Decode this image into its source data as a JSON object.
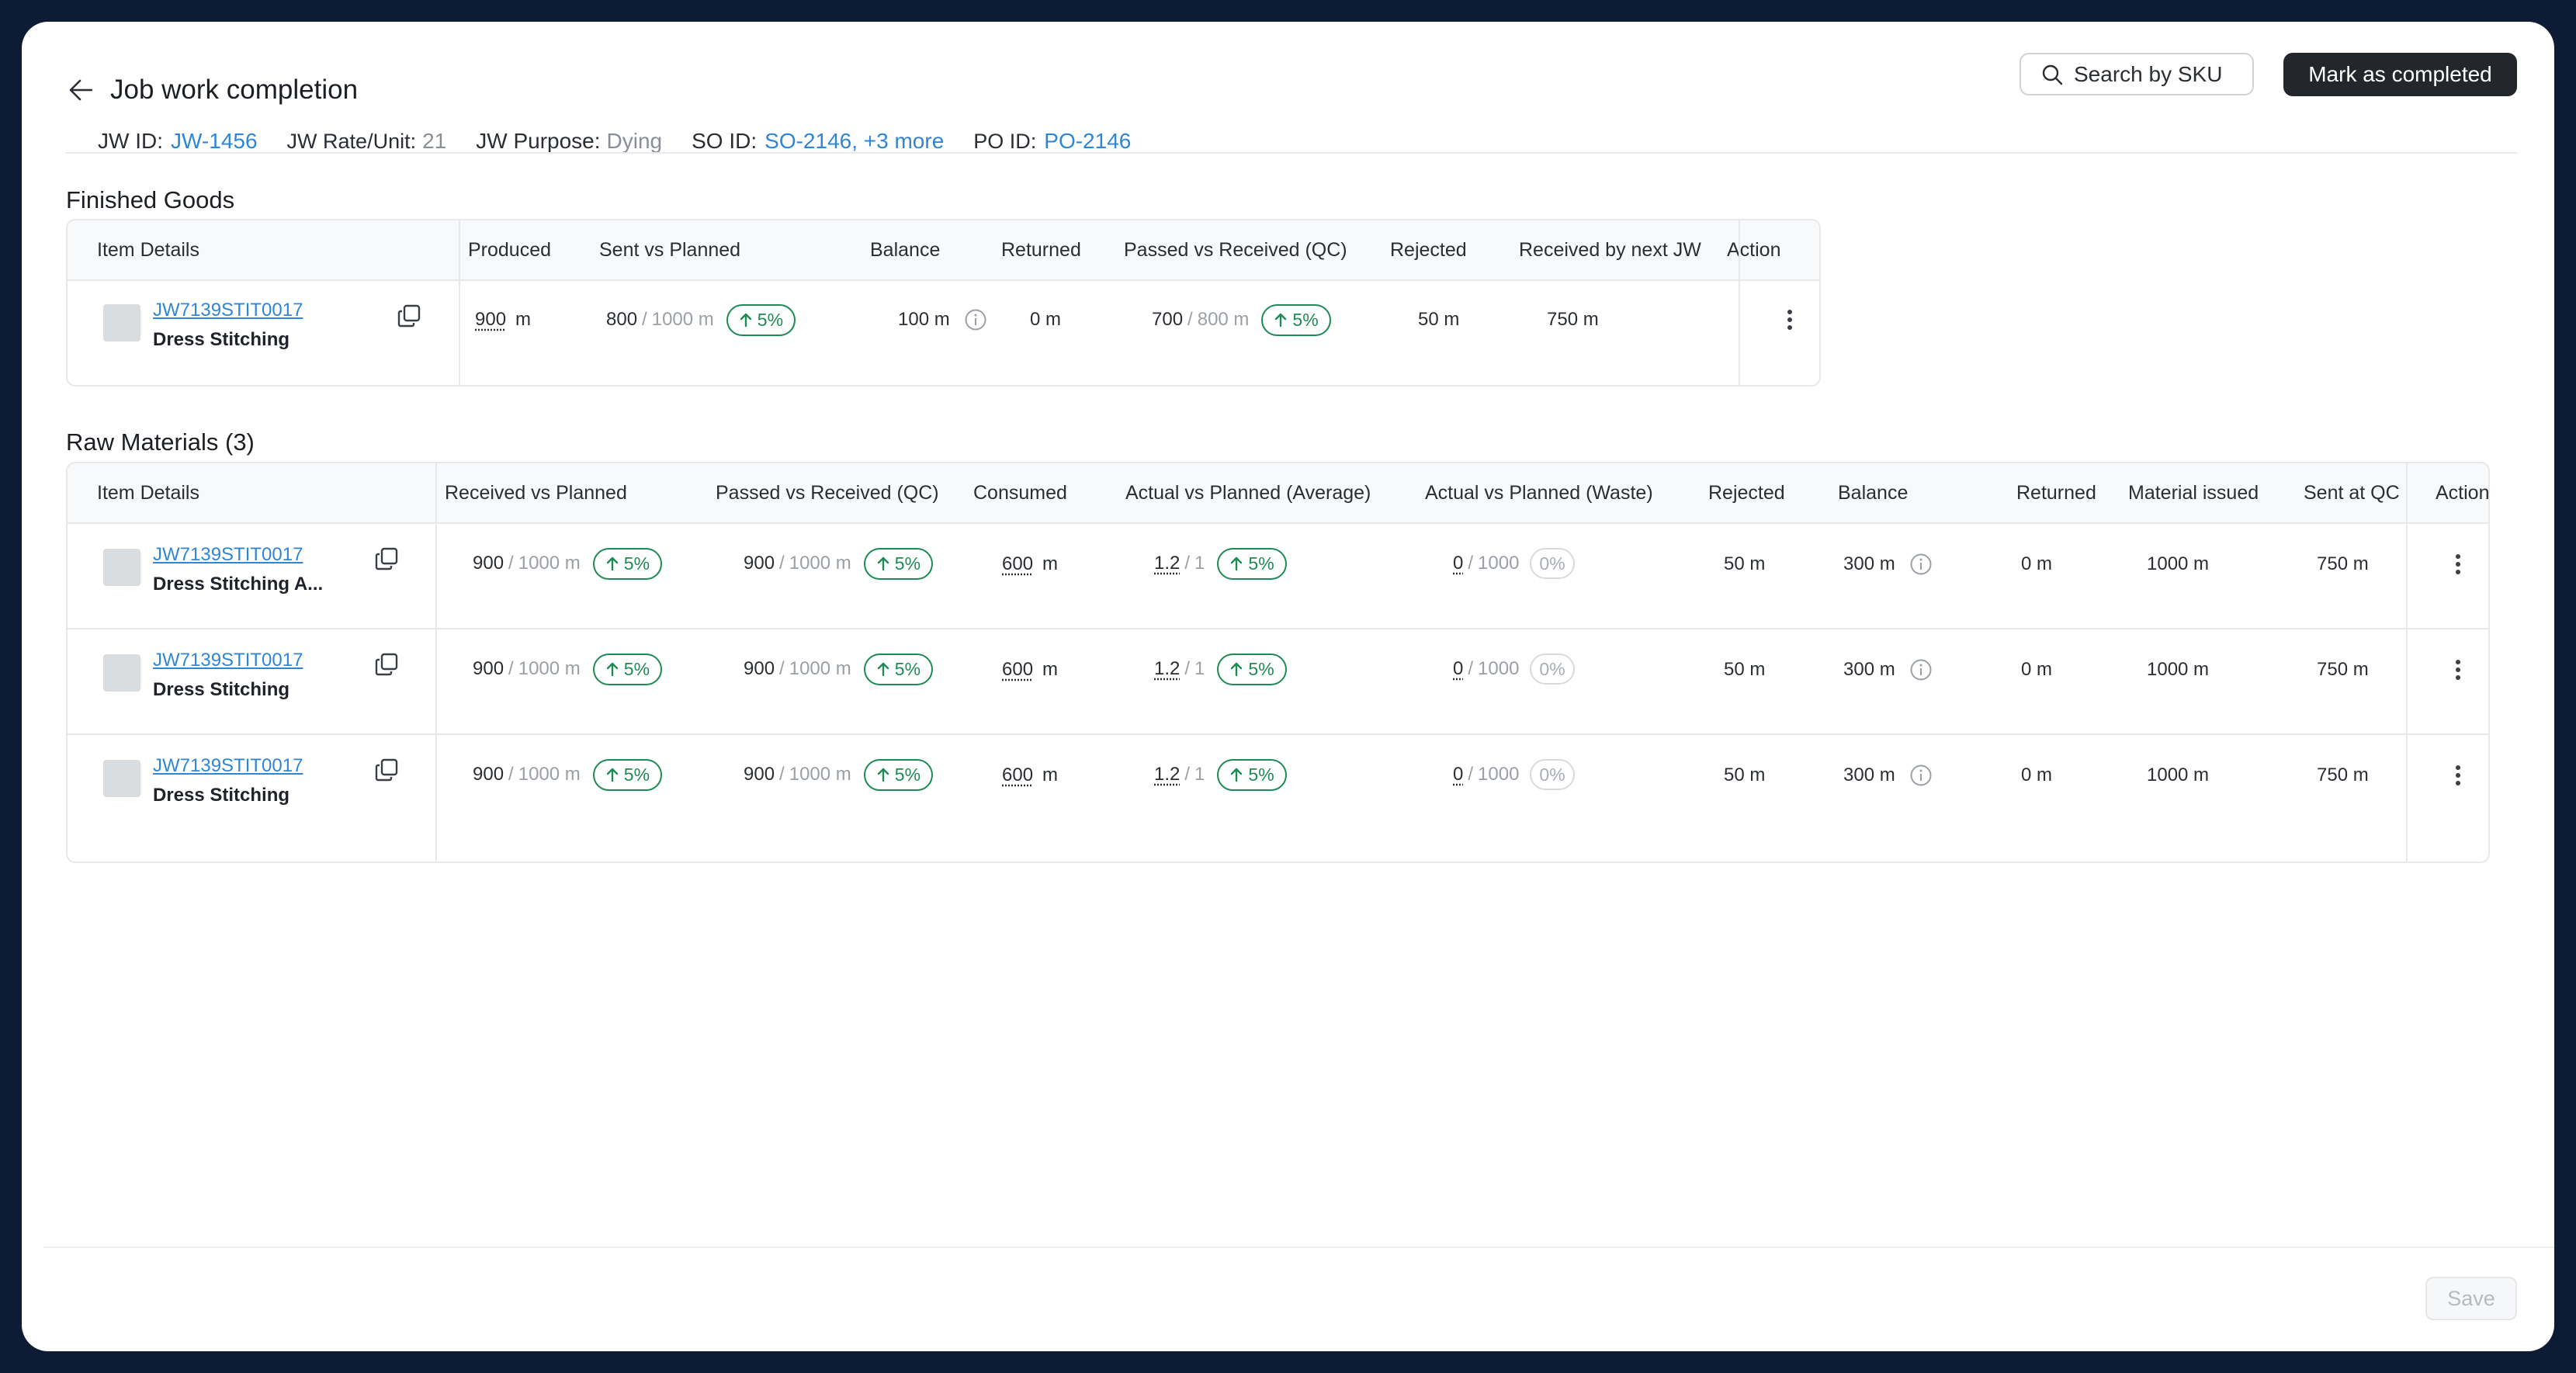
{
  "header": {
    "title": "Job work completion",
    "jw_id_label": "JW ID:",
    "jw_id_value": "JW-1456",
    "jw_rate_label": "JW Rate/Unit:",
    "jw_rate_value": "21",
    "jw_purpose_label": "JW Purpose:",
    "jw_purpose_value": "Dying",
    "so_id_label": "SO ID:",
    "so_id_value": "SO-2146, +3 more",
    "po_id_label": "PO ID:",
    "po_id_value": "PO-2146",
    "search_label": "Search by SKU",
    "complete_label": "Mark as completed"
  },
  "finished_goods": {
    "title": "Finished Goods",
    "columns": [
      "Item Details",
      "Produced",
      "Sent vs Planned",
      "Balance",
      "Returned",
      "Passed vs Received (QC)",
      "Rejected",
      "Received by next JW",
      "Action"
    ],
    "rows": [
      {
        "sku": "JW7139STIT0017",
        "name": "Dress Stitching",
        "produced": "900",
        "produced_unit": "m",
        "sent": "800",
        "planned": "1000 m",
        "sent_badge": "5%",
        "balance": "100 m",
        "returned": "0 m",
        "passed": "700",
        "received": "800 m",
        "passed_badge": "5%",
        "rejected": "50 m",
        "received_next": "750 m"
      }
    ]
  },
  "raw_materials": {
    "title": "Raw Materials (3)",
    "columns": [
      "Item Details",
      "Received vs Planned",
      "Passed vs Received (QC)",
      "Consumed",
      "Actual vs Planned (Average)",
      "Actual vs Planned (Waste)",
      "Rejected",
      "Balance",
      "Returned",
      "Material issued",
      "Sent at QC",
      "Action"
    ],
    "rows": [
      {
        "sku": "JW7139STIT0017",
        "name": "Dress Stitching A...",
        "received": "900",
        "planned": "1000 m",
        "recv_badge": "5%",
        "passed": "900",
        "passed_of": "1000 m",
        "passed_badge": "5%",
        "consumed": "600",
        "consumed_unit": "m",
        "avg_actual": "1.2",
        "avg_planned": "1",
        "avg_badge": "5%",
        "waste_actual": "0",
        "waste_planned": "1000",
        "waste_badge": "0%",
        "rejected": "50 m",
        "balance": "300 m",
        "returned": "0 m",
        "issued": "1000 m",
        "sent_qc": "750 m"
      },
      {
        "sku": "JW7139STIT0017",
        "name": "Dress Stitching",
        "received": "900",
        "planned": "1000 m",
        "recv_badge": "5%",
        "passed": "900",
        "passed_of": "1000 m",
        "passed_badge": "5%",
        "consumed": "600",
        "consumed_unit": "m",
        "avg_actual": "1.2",
        "avg_planned": "1",
        "avg_badge": "5%",
        "waste_actual": "0",
        "waste_planned": "1000",
        "waste_badge": "0%",
        "rejected": "50 m",
        "balance": "300 m",
        "returned": "0 m",
        "issued": "1000 m",
        "sent_qc": "750 m"
      },
      {
        "sku": "JW7139STIT0017",
        "name": "Dress Stitching",
        "received": "900",
        "planned": "1000 m",
        "recv_badge": "5%",
        "passed": "900",
        "passed_of": "1000 m",
        "passed_badge": "5%",
        "consumed": "600",
        "consumed_unit": "m",
        "avg_actual": "1.2",
        "avg_planned": "1",
        "avg_badge": "5%",
        "waste_actual": "0",
        "waste_planned": "1000",
        "waste_badge": "0%",
        "rejected": "50 m",
        "balance": "300 m",
        "returned": "0 m",
        "issued": "1000 m",
        "sent_qc": "750 m"
      }
    ]
  },
  "footer": {
    "save_label": "Save"
  },
  "colors": {
    "accent_link": "#2f86d6",
    "badge_green": "#1e8a55",
    "primary_button": "#23272c",
    "frame_bg": "#0e1b34"
  }
}
